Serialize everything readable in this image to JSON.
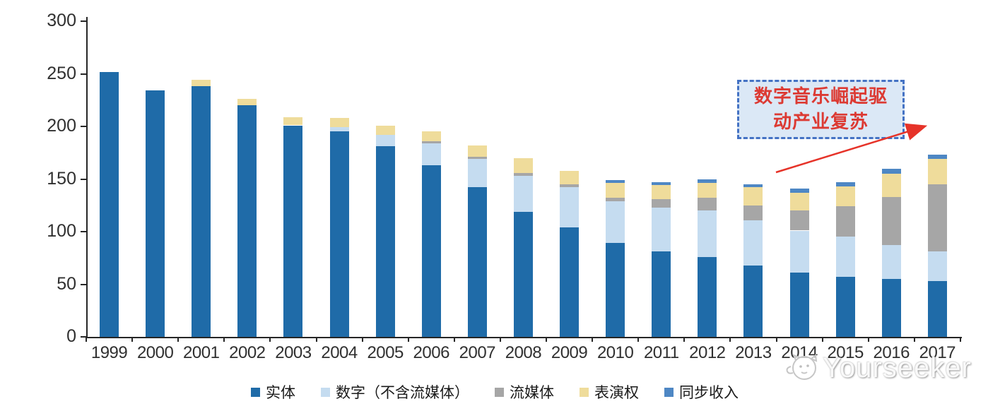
{
  "chart_data": {
    "type": "bar",
    "stacked": true,
    "title": "",
    "xlabel": "",
    "ylabel": "",
    "ylim": [
      0,
      300
    ],
    "yticks": [
      0,
      50,
      100,
      150,
      200,
      250,
      300
    ],
    "grid": false,
    "legend_position": "bottom",
    "categories": [
      "1999",
      "2000",
      "2001",
      "2002",
      "2003",
      "2004",
      "2005",
      "2006",
      "2007",
      "2008",
      "2009",
      "2010",
      "2011",
      "2012",
      "2013",
      "2014",
      "2015",
      "2016",
      "2017"
    ],
    "series": [
      {
        "name": "实体",
        "color": "#1f6ba8",
        "values": [
          252,
          234,
          238,
          220,
          201,
          195,
          181,
          163,
          142,
          119,
          104,
          89,
          81,
          76,
          68,
          61,
          57,
          55,
          53
        ]
      },
      {
        "name": "数字（不含流媒体）",
        "color": "#c5dcf0",
        "values": [
          0,
          0,
          0,
          0,
          0,
          4,
          11,
          21,
          27,
          34,
          38,
          40,
          42,
          44,
          43,
          40,
          38,
          32,
          28
        ]
      },
      {
        "name": "流媒体",
        "color": "#a6a6a6",
        "values": [
          0,
          0,
          0,
          0,
          0,
          0,
          0,
          2,
          2,
          3,
          3,
          3,
          8,
          12,
          14,
          19,
          29,
          46,
          64
        ]
      },
      {
        "name": "表演权",
        "color": "#efdc9b",
        "values": [
          0,
          0,
          6,
          6,
          8,
          9,
          9,
          9,
          11,
          14,
          13,
          14,
          13,
          14,
          17,
          17,
          19,
          22,
          24
        ]
      },
      {
        "name": "同步收入",
        "color": "#4e87c4",
        "values": [
          0,
          0,
          0,
          0,
          0,
          0,
          0,
          0,
          0,
          0,
          0,
          3,
          3,
          4,
          3,
          4,
          4,
          5,
          4
        ]
      }
    ]
  },
  "annotation": {
    "line1": "数字音乐崛起驱",
    "line2": "动产业复苏",
    "arrow_color": "#e63329"
  },
  "watermark": {
    "text": "Yourseeker"
  }
}
